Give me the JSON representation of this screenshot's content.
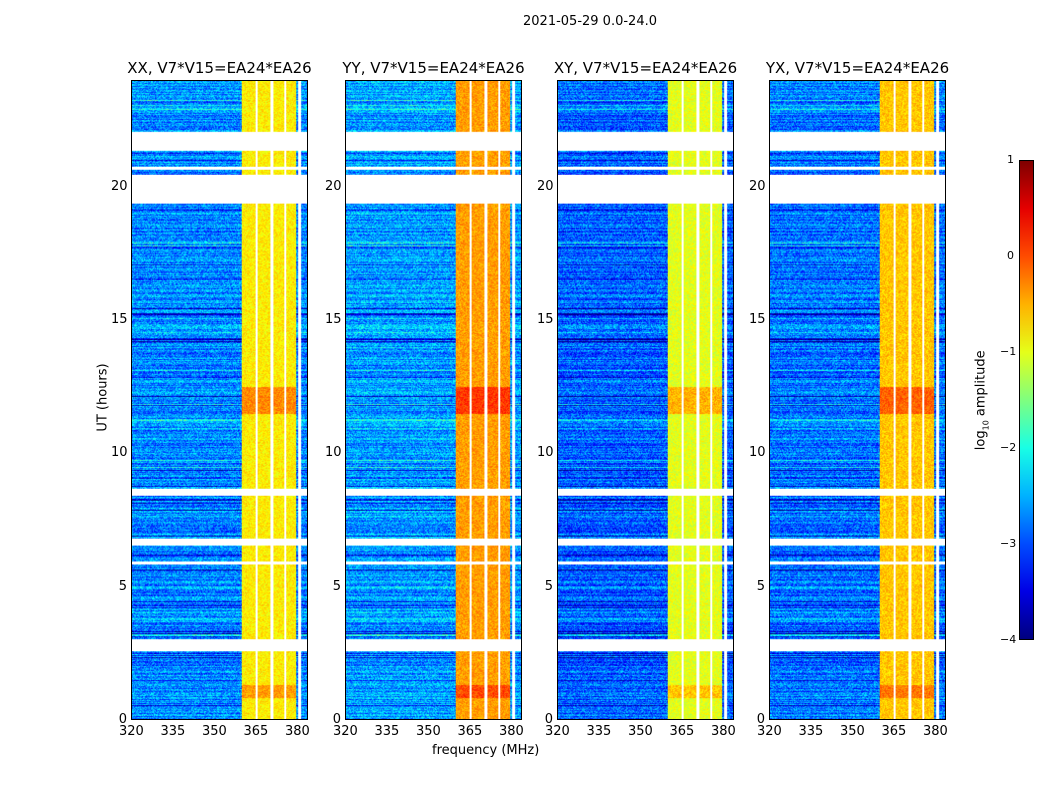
{
  "chart_data": {
    "type": "heatmap",
    "suptitle": "2021-05-29 0.0-24.0",
    "xlabel": "frequency (MHz)",
    "ylabel": "UT (hours)",
    "xlim": [
      320,
      384
    ],
    "ylim": [
      0,
      24
    ],
    "xticks": [
      "320",
      "335",
      "350",
      "365",
      "380"
    ],
    "xtick_values": [
      320,
      335,
      350,
      365,
      380
    ],
    "yticks": [
      "0",
      "5",
      "10",
      "15",
      "20"
    ],
    "ytick_values": [
      0,
      5,
      10,
      15,
      20
    ],
    "panels": [
      {
        "title": "XX, V7*V15=EA24*EA26",
        "background_log10": -2.7,
        "rfi_band_log10": -0.8
      },
      {
        "title": "YY, V7*V15=EA24*EA26",
        "background_log10": -2.6,
        "rfi_band_log10": -0.4
      },
      {
        "title": "XY, V7*V15=EA24*EA26",
        "background_log10": -2.9,
        "rfi_band_log10": -1.0
      },
      {
        "title": "YX, V7*V15=EA24*EA26",
        "background_log10": -2.8,
        "rfi_band_log10": -0.6
      }
    ],
    "rfi_band_mhz": [
      360,
      380
    ],
    "flagged_channels_mhz": [
      365.5,
      371,
      376
    ],
    "flagged_ut_intervals": [
      [
        21.4,
        22.1
      ],
      [
        19.4,
        20.5
      ],
      [
        20.7,
        20.8
      ],
      [
        8.4,
        8.7
      ],
      [
        6.55,
        6.8
      ],
      [
        2.55,
        3.0
      ],
      [
        5.85,
        5.95
      ]
    ],
    "colorbar": {
      "label": "log10 amplitude",
      "label_base": "log",
      "label_sub": "10",
      "label_rest": " amplitude",
      "range": [
        -4,
        1
      ],
      "ticks": [
        "1",
        "0",
        "−1",
        "−2",
        "−3",
        "−4"
      ],
      "tick_values": [
        1,
        0,
        -1,
        -2,
        -3,
        -4
      ],
      "colormap": "jet"
    }
  }
}
